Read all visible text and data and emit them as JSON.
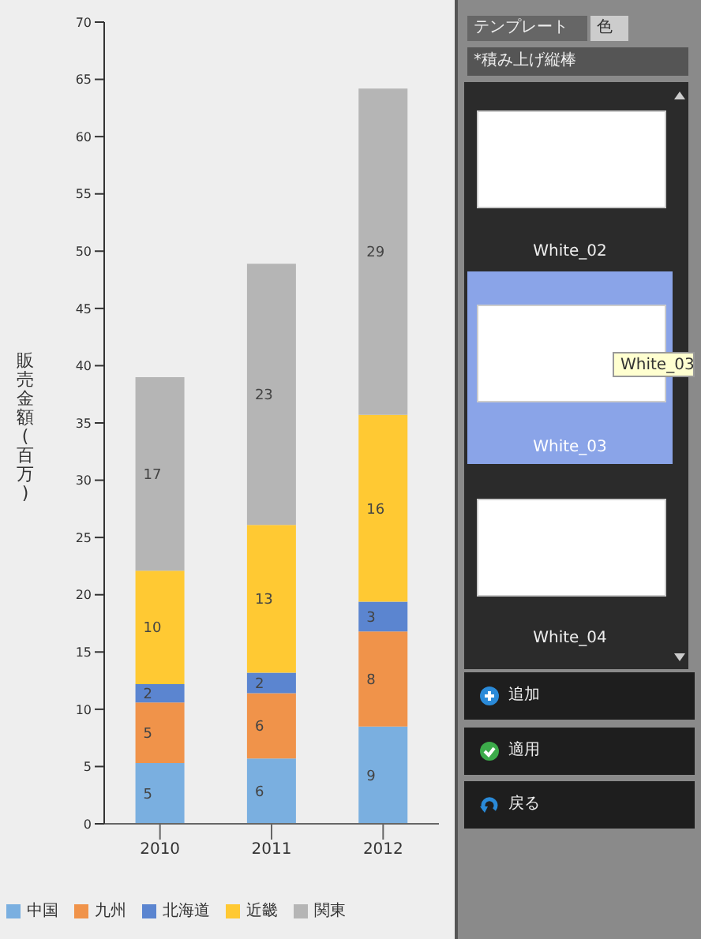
{
  "chart_data": [
    {
      "type": "bar",
      "stacked": true,
      "ylabel": "販売金額(百万)",
      "categories": [
        "2010",
        "2011",
        "2012"
      ],
      "series": [
        {
          "name": "中国",
          "color": "#7aafe0",
          "values": [
            5.3,
            5.7,
            8.5
          ],
          "value_labels": [
            "5",
            "6",
            "9"
          ]
        },
        {
          "name": "九州",
          "color": "#f0934a",
          "values": [
            5.3,
            5.7,
            8.3
          ],
          "value_labels": [
            "5",
            "6",
            "8"
          ]
        },
        {
          "name": "北海道",
          "color": "#5b85d0",
          "values": [
            1.6,
            1.8,
            2.6
          ],
          "value_labels": [
            "2",
            "2",
            "3"
          ]
        },
        {
          "name": "近畿",
          "color": "#ffc933",
          "values": [
            9.9,
            12.9,
            16.3
          ],
          "value_labels": [
            "10",
            "13",
            "16"
          ]
        },
        {
          "name": "関東",
          "color": "#b5b5b5",
          "values": [
            16.9,
            22.8,
            28.5
          ],
          "value_labels": [
            "17",
            "23",
            "29"
          ]
        }
      ],
      "ylim": [
        0,
        70
      ],
      "yticks": [
        0,
        5,
        10,
        15,
        20,
        25,
        30,
        35,
        40,
        45,
        50,
        55,
        60,
        65,
        70
      ],
      "legend": "bottom left"
    },
    {
      "type": "other",
      "annotations": [
        "テンプレート",
        "色",
        "*積み上げ縦棒",
        "White_02",
        "White_03",
        "White_03",
        "White_04",
        "追加",
        "適用",
        "戻る"
      ]
    }
  ]
}
